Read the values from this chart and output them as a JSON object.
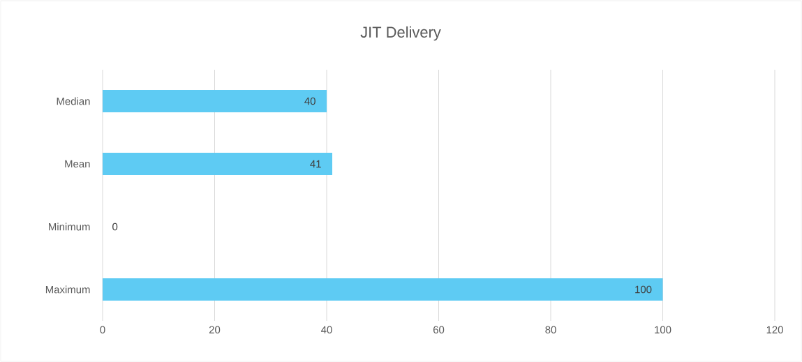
{
  "chart_data": {
    "type": "bar",
    "title": "JIT Delivery",
    "orientation": "horizontal",
    "categories": [
      "Median",
      "Mean",
      "Minimum",
      "Maximum"
    ],
    "values": [
      40,
      41,
      0,
      100
    ],
    "color": "#5ecbf3",
    "xlim": [
      0,
      120
    ],
    "xticks": [
      0,
      20,
      40,
      60,
      80,
      100,
      120
    ],
    "grid": "x",
    "data_labels": true
  }
}
